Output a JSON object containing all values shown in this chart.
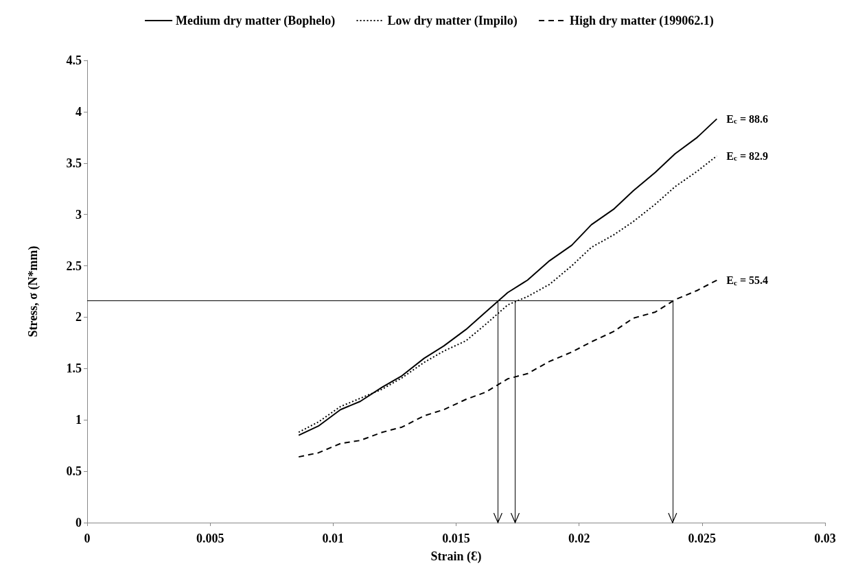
{
  "chart_data": {
    "type": "line",
    "xlabel": "Strain (Ɛ)",
    "ylabel": "Stress, σ (N*mm)",
    "x": [
      0.0086,
      0.0094,
      0.0103,
      0.0111,
      0.012,
      0.0128,
      0.0137,
      0.0145,
      0.0154,
      0.0162,
      0.0171,
      0.0179,
      0.0188,
      0.0197,
      0.0205,
      0.0214,
      0.0222,
      0.0231,
      0.0239,
      0.0248,
      0.0256
    ],
    "series": [
      {
        "name": "Medium dry matter (Bophelo)",
        "color": "#000000",
        "line_style": "solid",
        "values": [
          0.85,
          0.94,
          1.1,
          1.18,
          1.32,
          1.43,
          1.6,
          1.72,
          1.88,
          2.05,
          2.24,
          2.36,
          2.55,
          2.7,
          2.9,
          3.05,
          3.23,
          3.41,
          3.59,
          3.75,
          3.93
        ]
      },
      {
        "name": "Low dry matter (Impilo)",
        "color": "#000000",
        "line_style": "dotted",
        "values": [
          0.88,
          0.98,
          1.13,
          1.21,
          1.3,
          1.41,
          1.56,
          1.67,
          1.77,
          1.93,
          2.12,
          2.2,
          2.32,
          2.5,
          2.68,
          2.8,
          2.93,
          3.1,
          3.27,
          3.42,
          3.57
        ]
      },
      {
        "name": "High dry matter (199062.1)",
        "color": "#000000",
        "line_style": "dashed",
        "values": [
          0.64,
          0.68,
          0.77,
          0.8,
          0.88,
          0.93,
          1.04,
          1.1,
          1.2,
          1.27,
          1.4,
          1.45,
          1.57,
          1.66,
          1.76,
          1.86,
          1.99,
          2.05,
          2.17,
          2.26,
          2.36
        ]
      }
    ],
    "xlim": [
      0,
      0.03
    ],
    "xticks": [
      0,
      0.005,
      0.01,
      0.015,
      0.02,
      0.025,
      0.03
    ],
    "ylim": [
      0,
      4.5
    ],
    "yticks": [
      0,
      0.5,
      1,
      1.5,
      2,
      2.5,
      3,
      3.5,
      4,
      4.5
    ],
    "ref_lines": [
      {
        "axis": "y",
        "value": 2.16,
        "color": "#000000"
      },
      {
        "axis": "x",
        "value": 0.0167,
        "color": "#000000"
      },
      {
        "axis": "x",
        "value": 0.0174,
        "color": "#000000"
      },
      {
        "axis": "x",
        "value": 0.0238,
        "color": "#000000"
      }
    ],
    "annotations": [
      "E$_{c}$ = 88.6",
      "E$_{c}$ = 82.9",
      "E$_{c}$ = 55.4"
    ],
    "grid": false,
    "legend": "top",
    "marker": "none"
  }
}
